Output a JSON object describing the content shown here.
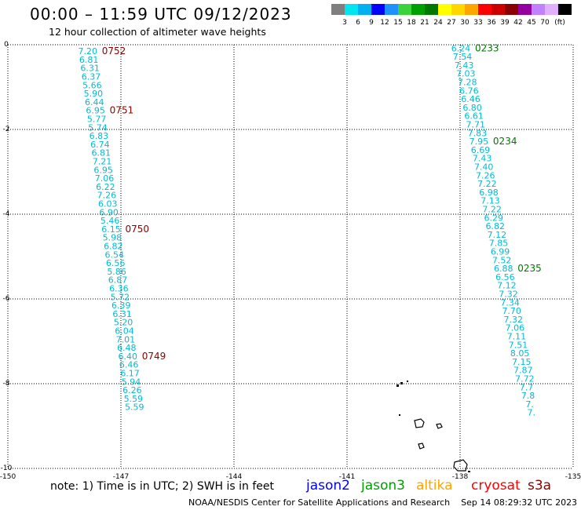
{
  "header": {
    "title": "00:00 – 11:59 UTC 09/12/2023",
    "subtitle": "12 hour collection of altimeter wave heights"
  },
  "colors": {
    "color_scale_cells": [
      "#7f7f7f",
      "#00e5ee",
      "#00b0f0",
      "#0000ff",
      "#1e90ff",
      "#3cd23c",
      "#00a000",
      "#007800",
      "#ffff00",
      "#ffd700",
      "#ffa500",
      "#ff0000",
      "#cd0000",
      "#8b0000",
      "#9400a0",
      "#c080ff",
      "#e0b0ff",
      "#000000"
    ],
    "swh_label": "#00bcd4",
    "time_label_red": "#8b0000",
    "time_label_green": "#007800",
    "grid": "#000000"
  },
  "footer": {
    "note": "note: 1) Time is in UTC; 2) SWH is in feet",
    "satellites": [
      {
        "name": "jason2",
        "color": "#0000ff"
      },
      {
        "name": "jason3",
        "color": "#00a000"
      },
      {
        "name": "altika",
        "color": "#ffa500"
      },
      {
        "name": "cryosat",
        "color": "#ff0000"
      },
      {
        "name": "s3a",
        "color": "#8b0000"
      }
    ],
    "credit": "NOAA/NESDIS Center for Satellite Applications and Research",
    "timestamp": "Sep 14 08:29:32 UTC 2023"
  },
  "chart_data": {
    "type": "scatter",
    "title": "00:00 – 11:59 UTC 09/12/2023",
    "subtitle": "12 hour collection of altimeter wave heights",
    "xlim": [
      -150,
      -135
    ],
    "ylim": [
      -10,
      0
    ],
    "x_ticks": [
      "-150",
      "-147",
      "-144",
      "-141",
      "-138",
      "-135"
    ],
    "y_ticks": [
      "0",
      "-2",
      "-4",
      "-6",
      "-8",
      "-10"
    ],
    "grid": true,
    "color_scale": {
      "labels": [
        "3",
        "6",
        "9",
        "12",
        "15",
        "18",
        "21",
        "24",
        "27",
        "30",
        "33",
        "36",
        "39",
        "42",
        "45",
        "70"
      ],
      "unit": "(ft)"
    },
    "tracks": [
      {
        "id": "west",
        "time_color": "red",
        "start": [
          -147.88,
          -0.15
        ],
        "step": [
          0.0295,
          -0.2
        ],
        "values": [
          "7.20",
          "6.81",
          "6.31",
          "6.37",
          "5.66",
          "5.90",
          "6.44",
          "6.95",
          "5.77",
          "5.74",
          "6.83",
          "6.74",
          "6.81",
          "7.21",
          "6.95",
          "7.06",
          "6.22",
          "7.26",
          "6.03",
          "6.90",
          "5.46",
          "6.15",
          "5.98",
          "6.82",
          "6.54",
          "6.56",
          "5.86",
          "6.87",
          "6.36",
          "5.72",
          "6.39",
          "6.31",
          "5.20",
          "6.04",
          "7.01",
          "6.48",
          "6.40",
          "6.46",
          "6.17",
          "5.94",
          "6.26",
          "5.59",
          "5.59"
        ],
        "time_labels": [
          {
            "text": "0752",
            "index": 0
          },
          {
            "text": "0751",
            "index": 7
          },
          {
            "text": "0750",
            "index": 21
          },
          {
            "text": "0749",
            "index": 36
          }
        ]
      },
      {
        "id": "east",
        "time_color": "green",
        "start": [
          -137.98,
          -0.08
        ],
        "step": [
          0.0435,
          -0.2
        ],
        "values": [
          "6.24",
          "7.54",
          "7.43",
          "7.03",
          "7.28",
          "6.76",
          "6.46",
          "6.80",
          "6.61",
          "7.71",
          "7.83",
          "7.95",
          "6.69",
          "7.43",
          "7.40",
          "7.26",
          "7.22",
          "6.98",
          "7.13",
          "7.22",
          "6.29",
          "6.82",
          "7.12",
          "7.85",
          "6.99",
          "7.52",
          "6.88",
          "6.56",
          "7.12",
          "7.32",
          "7.34",
          "7.70",
          "7.32",
          "7.06",
          "7.11",
          "7.51",
          "8.05",
          "7.15",
          "7.87",
          "7.72",
          "7.7",
          "7.8",
          "7.",
          "7."
        ],
        "time_labels": [
          {
            "text": "0233",
            "index": 0
          },
          {
            "text": "0234",
            "index": 11
          },
          {
            "text": "0235",
            "index": 26
          }
        ]
      }
    ]
  }
}
